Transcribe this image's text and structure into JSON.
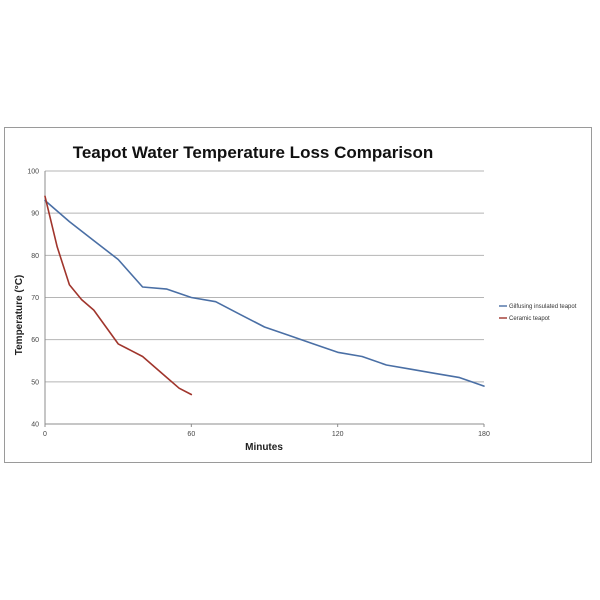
{
  "chart_data": {
    "type": "line",
    "title": "Teapot Water Temperature Loss Comparison",
    "xlabel": "Minutes",
    "ylabel": "Temperature (°C)",
    "xlim": [
      0,
      180
    ],
    "ylim": [
      40,
      100
    ],
    "xticks": [
      "0",
      "60",
      "120",
      "180"
    ],
    "yticks": [
      "40",
      "50",
      "60",
      "70",
      "80",
      "90",
      "100"
    ],
    "grid": true,
    "legend_position": "right",
    "series": [
      {
        "name": "Gilfusing insulated teapot",
        "color": "#4a6fa5",
        "x": [
          0,
          10,
          20,
          30,
          40,
          50,
          60,
          70,
          80,
          90,
          100,
          110,
          120,
          130,
          140,
          150,
          160,
          170,
          180
        ],
        "y": [
          93,
          88,
          83.5,
          79,
          72.5,
          72,
          70,
          69,
          66,
          63,
          61,
          59,
          57,
          56,
          54,
          53,
          52,
          51,
          49
        ]
      },
      {
        "name": "Ceramic teapot",
        "color": "#a0352c",
        "x": [
          0,
          5,
          10,
          15,
          20,
          25,
          30,
          35,
          40,
          45,
          50,
          55,
          60
        ],
        "y": [
          94,
          82,
          73,
          69.5,
          67,
          63,
          59,
          57.5,
          56,
          53.5,
          51,
          48.5,
          47
        ]
      }
    ]
  }
}
